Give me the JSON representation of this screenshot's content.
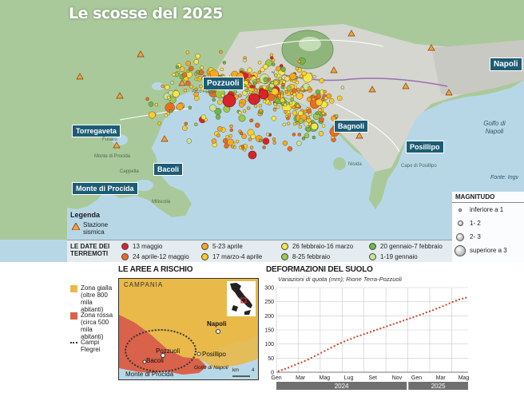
{
  "map": {
    "title": "Le scosse del 2025",
    "places": {
      "pozzuoli": "Pozzuoli",
      "napoli": "Napoli",
      "torregaveta": "Torregaveta",
      "bagnoli": "Bagnoli",
      "bacoli": "Bacoli",
      "posillipo": "Posillipo",
      "monte_di_procida": "Monte di Procida"
    },
    "small_places": [
      "Monte di Procida",
      "Cappella",
      "Fusaro",
      "Miliscola",
      "Nisida",
      "Capo di Posillipo",
      "Arco Felice"
    ],
    "gulf_label": "Golfo di Napoli",
    "source": "Fonte: Ingv",
    "legend": {
      "title": "Legenda",
      "station_label": "Stazione sismica",
      "station_color": "#f2a33a"
    },
    "magnitude": {
      "title": "MAGNITUDO",
      "classes": [
        "inferiore a 1",
        "1- 2",
        "2- 3",
        "superiore a 3"
      ]
    },
    "dates": {
      "title": "LE DATE DEI TERREMOTI",
      "items": [
        {
          "label": "13 maggio",
          "color": "#d8232a"
        },
        {
          "label": "24 aprile-12 maggio",
          "color": "#ec6b21"
        },
        {
          "label": "5-23 aprile",
          "color": "#f4a824"
        },
        {
          "label": "17 marzo-4 aprile",
          "color": "#f8cc2c"
        },
        {
          "label": "26 febbraio-16 marzo",
          "color": "#f3e64a"
        },
        {
          "label": "8-25 febbraio",
          "color": "#9cc94a"
        },
        {
          "label": "20 gennaio-7 febbraio",
          "color": "#6cb84a"
        },
        {
          "label": "1-19 gennaio",
          "color": "#c8e39a"
        }
      ]
    }
  },
  "risk": {
    "title": "LE AREE A RISCHIO",
    "region": "CAMPANIA",
    "zones": [
      {
        "label": "Zona gialla (oltre 800 mila abitanti)",
        "color": "#e9b94a"
      },
      {
        "label": "Zona rossa (circa 500 mila abitanti)",
        "color": "#d9624a"
      },
      {
        "label": "Campi Flegrei",
        "color": "#333333"
      }
    ],
    "places": {
      "pozzuoli": "Pozzuoli",
      "napoli": "Napoli",
      "bacoli": "Bacoli",
      "posillipo": "Posillipo",
      "monte_di_procida": "Monte di Procida",
      "gulf": "Golfo di Napoli"
    },
    "scale_unit": "km",
    "scale_value": "4"
  },
  "deformation": {
    "title": "DEFORMAZIONI DEL SUOLO",
    "subtitle": "Variazioni di quota (mm); Rione Terra-Pozzuoli",
    "chart_data": {
      "type": "scatter",
      "title": "DEFORMAZIONI DEL SUOLO",
      "subtitle": "Variazioni di quota (mm); Rione Terra-Pozzuoli",
      "x_ticks": [
        "Gen",
        "Mar",
        "Mag",
        "Lug",
        "Set",
        "Nov",
        "Gen",
        "Mar",
        "Mag"
      ],
      "years": [
        "2024",
        "2025"
      ],
      "y_ticks": [
        0,
        50,
        100,
        150,
        200,
        250,
        300
      ],
      "ylim": [
        0,
        300
      ],
      "grid": true,
      "series": [
        {
          "color": "#d0402b",
          "x_months": [
            0.2,
            0.5,
            0.8,
            1.1,
            1.4,
            1.7,
            2.0,
            2.3,
            2.6,
            2.9,
            3.2,
            3.5,
            3.8,
            4.1,
            4.4,
            4.7,
            5.0,
            5.3,
            5.6,
            5.9,
            6.2,
            6.5,
            6.8,
            7.1,
            7.4,
            7.7,
            8.0,
            8.3,
            8.6,
            8.9,
            9.2,
            9.5,
            9.8,
            10.1,
            10.4,
            10.7,
            11.0,
            11.3,
            11.6,
            11.9,
            12.2,
            12.5,
            12.8,
            13.1,
            13.4,
            13.7,
            14.0,
            14.3,
            14.6,
            14.9,
            15.2,
            15.5,
            15.8,
            16.1,
            16.4,
            16.7,
            17.0,
            17.3
          ],
          "y": [
            4,
            8,
            12,
            16,
            21,
            26,
            31,
            35,
            40,
            45,
            51,
            57,
            63,
            69,
            75,
            81,
            87,
            93,
            99,
            104,
            109,
            114,
            118,
            123,
            127,
            131,
            135,
            139,
            143,
            147,
            151,
            155,
            159,
            163,
            167,
            171,
            175,
            179,
            183,
            187,
            191,
            195,
            199,
            203,
            207,
            212,
            216,
            220,
            225,
            229,
            234,
            239,
            244,
            249,
            254,
            258,
            261,
            264
          ]
        }
      ]
    }
  }
}
